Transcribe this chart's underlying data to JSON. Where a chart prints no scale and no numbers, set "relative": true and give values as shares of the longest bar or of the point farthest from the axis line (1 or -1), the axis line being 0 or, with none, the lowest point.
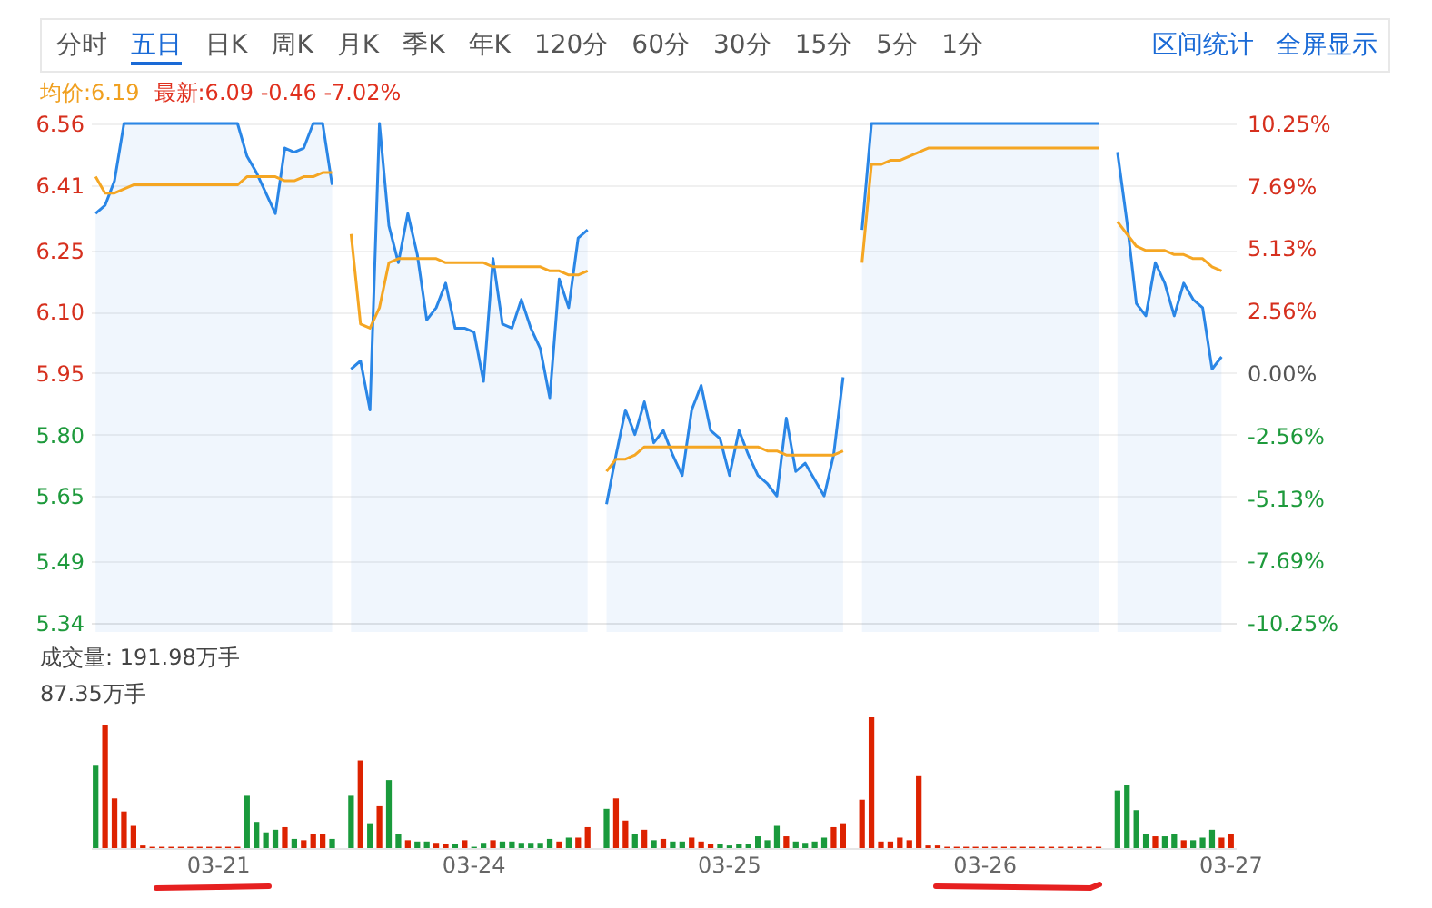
{
  "chart_data": [
    {
      "type": "line",
      "annotations": [
        "分时",
        "五日",
        "日K",
        "周K",
        "月K",
        "季K",
        "年K",
        "120分",
        "60分",
        "30分",
        "15分",
        "5分",
        "1分",
        "区间统计",
        "全屏显示",
        "均价:6.19",
        "最新:6.09 -0.46 -7.02%"
      ],
      "categories": [
        null,
        null,
        null,
        null,
        null,
        null,
        null,
        null,
        null,
        null,
        null,
        null,
        null,
        null,
        null,
        null,
        null,
        null,
        null,
        null,
        null,
        null,
        null,
        null,
        null,
        null,
        null,
        null,
        null,
        null,
        null,
        null,
        null,
        null,
        null,
        null,
        null,
        null,
        null,
        null,
        null,
        null,
        null,
        null,
        null,
        null,
        null,
        null,
        null,
        null,
        null,
        null,
        null,
        null,
        null,
        null,
        null,
        null,
        null,
        null,
        null,
        null,
        null,
        null,
        null,
        null,
        null,
        null,
        null,
        null,
        null,
        null,
        null,
        null,
        null,
        null,
        null,
        null,
        null,
        null,
        null,
        null,
        null,
        null,
        null,
        null,
        null,
        null,
        null,
        null,
        null,
        null,
        null,
        null,
        null,
        null,
        null,
        null,
        null,
        null,
        null,
        null,
        null,
        null,
        null,
        null,
        null,
        null,
        null,
        null,
        null,
        null,
        null,
        null,
        null,
        null,
        null,
        null,
        null,
        null,
        null
      ],
      "series": [
        {
          "type": "area",
          "color": "#2a86e6",
          "values": [
            6.34,
            6.36,
            6.42,
            6.56,
            6.56,
            6.56,
            6.56,
            6.56,
            6.56,
            6.56,
            6.56,
            6.56,
            6.56,
            6.56,
            6.56,
            6.56,
            6.48,
            6.44,
            6.39,
            6.34,
            6.5,
            6.49,
            6.5,
            6.56,
            6.56,
            6.41,
            null,
            5.96,
            5.98,
            5.86,
            6.56,
            6.31,
            6.22,
            6.34,
            6.24,
            6.08,
            6.11,
            6.17,
            6.06,
            6.06,
            6.05,
            5.93,
            6.23,
            6.07,
            6.06,
            6.13,
            6.06,
            6.01,
            5.89,
            6.18,
            6.11,
            6.28,
            6.3,
            null,
            5.63,
            5.75,
            5.86,
            5.8,
            5.88,
            5.78,
            5.81,
            5.75,
            5.7,
            5.86,
            5.92,
            5.81,
            5.79,
            5.7,
            5.81,
            5.75,
            5.7,
            5.68,
            5.65,
            5.84,
            5.71,
            5.73,
            5.69,
            5.65,
            5.75,
            5.94,
            null,
            6.3,
            6.56,
            6.56,
            6.56,
            6.56,
            6.56,
            6.56,
            6.56,
            6.56,
            6.56,
            6.56,
            6.56,
            6.56,
            6.56,
            6.56,
            6.56,
            6.56,
            6.56,
            6.56,
            6.56,
            6.56,
            6.56,
            6.56,
            6.56,
            6.56,
            6.56,
            null,
            6.49,
            6.32,
            6.12,
            6.09,
            6.22,
            6.17,
            6.09,
            6.17,
            6.13,
            6.11,
            5.96,
            5.99,
            null
          ]
        },
        {
          "type": "line",
          "color": "#f5a623",
          "values": [
            6.43,
            6.39,
            6.39,
            6.4,
            6.41,
            6.41,
            6.41,
            6.41,
            6.41,
            6.41,
            6.41,
            6.41,
            6.41,
            6.41,
            6.41,
            6.41,
            6.43,
            6.43,
            6.43,
            6.43,
            6.42,
            6.42,
            6.43,
            6.43,
            6.44,
            6.44,
            null,
            6.29,
            6.07,
            6.06,
            6.11,
            6.22,
            6.23,
            6.23,
            6.23,
            6.23,
            6.23,
            6.22,
            6.22,
            6.22,
            6.22,
            6.22,
            6.21,
            6.21,
            6.21,
            6.21,
            6.21,
            6.21,
            6.2,
            6.2,
            6.19,
            6.19,
            6.2,
            null,
            5.71,
            5.74,
            5.74,
            5.75,
            5.77,
            5.77,
            5.77,
            5.77,
            5.77,
            5.77,
            5.77,
            5.77,
            5.77,
            5.77,
            5.77,
            5.77,
            5.77,
            5.76,
            5.76,
            5.75,
            5.75,
            5.75,
            5.75,
            5.75,
            5.75,
            5.76,
            null,
            6.22,
            6.46,
            6.46,
            6.47,
            6.47,
            6.48,
            6.49,
            6.5,
            6.5,
            6.5,
            6.5,
            6.5,
            6.5,
            6.5,
            6.5,
            6.5,
            6.5,
            6.5,
            6.5,
            6.5,
            6.5,
            6.5,
            6.5,
            6.5,
            6.5,
            6.5,
            null,
            6.32,
            6.29,
            6.26,
            6.25,
            6.25,
            6.25,
            6.24,
            6.24,
            6.23,
            6.23,
            6.21,
            6.2,
            null
          ]
        }
      ],
      "ylim": [
        5.34,
        6.56
      ],
      "yticks": [
        6.56,
        6.41,
        6.25,
        {
          "value": 6.1,
          "label": "6.10"
        },
        5.95,
        {
          "value": 5.8,
          "label": "5.80"
        },
        5.65,
        5.49,
        5.34
      ],
      "y2lim": [
        -10.25,
        10.25
      ],
      "y2ticks": [
        {
          "value": 10.25,
          "label": "10.25%"
        },
        {
          "value": 7.69,
          "label": "7.69%"
        },
        {
          "value": 5.13,
          "label": "5.13%"
        },
        {
          "value": 2.56,
          "label": "2.56%"
        },
        {
          "value": 0,
          "label": "0.00%"
        },
        {
          "value": -2.56,
          "label": "-2.56%"
        },
        {
          "value": -5.13,
          "label": "-5.13%"
        },
        {
          "value": -7.69,
          "label": "-7.69%"
        },
        {
          "value": -10.25,
          "label": "-10.25%"
        }
      ],
      "grid": "y",
      "tick_labels": "y"
    },
    {
      "type": "bar",
      "relative": true,
      "annotations": [
        "成交量: 191.98万手",
        "87.35万手"
      ],
      "categories": [
        null,
        null,
        null,
        null,
        null,
        null,
        null,
        null,
        null,
        null,
        null,
        null,
        null,
        "03-21",
        null,
        null,
        null,
        null,
        null,
        null,
        null,
        null,
        null,
        null,
        null,
        null,
        null,
        null,
        null,
        null,
        null,
        null,
        null,
        null,
        null,
        null,
        null,
        null,
        null,
        null,
        "03-24",
        null,
        null,
        null,
        null,
        null,
        null,
        null,
        null,
        null,
        null,
        null,
        null,
        null,
        null,
        null,
        null,
        null,
        null,
        null,
        null,
        null,
        null,
        null,
        null,
        null,
        null,
        "03-25",
        null,
        null,
        null,
        null,
        null,
        null,
        null,
        null,
        null,
        null,
        null,
        null,
        null,
        null,
        null,
        null,
        null,
        null,
        null,
        null,
        null,
        null,
        null,
        null,
        null,
        null,
        "03-26",
        null,
        null,
        null,
        null,
        null,
        null,
        null,
        null,
        null,
        null,
        null,
        null,
        null,
        null,
        null,
        null,
        null,
        null,
        null,
        null,
        null,
        null,
        null,
        null,
        null,
        "03-27"
      ],
      "values": [
        0.63,
        0.94,
        0.38,
        0.28,
        0.17,
        0.02,
        0.01,
        0.01,
        0.01,
        0.01,
        0.01,
        0.01,
        0.01,
        0.01,
        0.01,
        0.01,
        0.4,
        0.2,
        0.12,
        0.14,
        0.16,
        0.07,
        0.06,
        0.11,
        0.11,
        0.07,
        null,
        0.4,
        0.67,
        0.19,
        0.32,
        0.52,
        0.11,
        0.06,
        0.05,
        0.05,
        0.04,
        0.03,
        0.03,
        0.06,
        0.01,
        0.04,
        0.06,
        0.05,
        0.05,
        0.04,
        0.04,
        0.04,
        0.07,
        0.05,
        0.08,
        0.08,
        0.16,
        null,
        0.3,
        0.38,
        0.21,
        0.11,
        0.14,
        0.06,
        0.07,
        0.05,
        0.05,
        0.08,
        0.05,
        0.03,
        0.03,
        0.02,
        0.03,
        0.03,
        0.09,
        0.06,
        0.17,
        0.09,
        0.05,
        0.04,
        0.05,
        0.08,
        0.16,
        0.19,
        null,
        0.37,
        1,
        0.05,
        0.05,
        0.08,
        0.06,
        0.55,
        0.02,
        0.02,
        0.01,
        0.01,
        0.01,
        0.01,
        0.01,
        0.01,
        0.01,
        0.01,
        0.01,
        0.01,
        0.01,
        0.01,
        0.01,
        0.01,
        0.01,
        0.01,
        0.01,
        null,
        0.44,
        0.48,
        0.29,
        0.11,
        0.09,
        0.09,
        0.11,
        0.06,
        0.06,
        0.08,
        0.14,
        0.08,
        0.11
      ],
      "colors": [
        "#1a9a3c",
        "#dd2200",
        "#dd2200",
        "#dd2200",
        "#dd2200",
        "#dd2200",
        "#dd2200",
        "#dd2200",
        "#dd2200",
        "#dd2200",
        "#dd2200",
        "#dd2200",
        "#dd2200",
        "#dd2200",
        "#dd2200",
        "#dd2200",
        "#1a9a3c",
        "#1a9a3c",
        "#1a9a3c",
        "#1a9a3c",
        "#dd2200",
        "#1a9a3c",
        "#dd2200",
        "#dd2200",
        "#dd2200",
        "#1a9a3c",
        null,
        "#1a9a3c",
        "#dd2200",
        "#1a9a3c",
        "#dd2200",
        "#1a9a3c",
        "#1a9a3c",
        "#dd2200",
        "#1a9a3c",
        "#1a9a3c",
        "#dd2200",
        "#dd2200",
        "#1a9a3c",
        "#dd2200",
        "#1a9a3c",
        "#1a9a3c",
        "#dd2200",
        "#1a9a3c",
        "#1a9a3c",
        "#1a9a3c",
        "#1a9a3c",
        "#1a9a3c",
        "#1a9a3c",
        "#dd2200",
        "#1a9a3c",
        "#dd2200",
        "#dd2200",
        null,
        "#1a9a3c",
        "#dd2200",
        "#dd2200",
        "#1a9a3c",
        "#dd2200",
        "#1a9a3c",
        "#dd2200",
        "#1a9a3c",
        "#1a9a3c",
        "#dd2200",
        "#dd2200",
        "#dd2200",
        "#1a9a3c",
        "#1a9a3c",
        "#1a9a3c",
        "#1a9a3c",
        "#1a9a3c",
        "#1a9a3c",
        "#1a9a3c",
        "#dd2200",
        "#1a9a3c",
        "#1a9a3c",
        "#1a9a3c",
        "#1a9a3c",
        "#dd2200",
        "#dd2200",
        null,
        "#dd2200",
        "#dd2200",
        "#dd2200",
        "#dd2200",
        "#dd2200",
        "#dd2200",
        "#dd2200",
        "#dd2200",
        "#dd2200",
        "#dd2200",
        "#dd2200",
        "#dd2200",
        "#dd2200",
        "#dd2200",
        "#dd2200",
        "#dd2200",
        "#dd2200",
        "#dd2200",
        "#dd2200",
        "#dd2200",
        "#dd2200",
        "#dd2200",
        "#dd2200",
        "#dd2200",
        "#dd2200",
        "#dd2200",
        null,
        "#1a9a3c",
        "#1a9a3c",
        "#1a9a3c",
        "#1a9a3c",
        "#dd2200",
        "#1a9a3c",
        "#1a9a3c",
        "#dd2200",
        "#1a9a3c",
        "#1a9a3c",
        "#1a9a3c",
        "#dd2200",
        "#dd2200"
      ]
    }
  ]
}
